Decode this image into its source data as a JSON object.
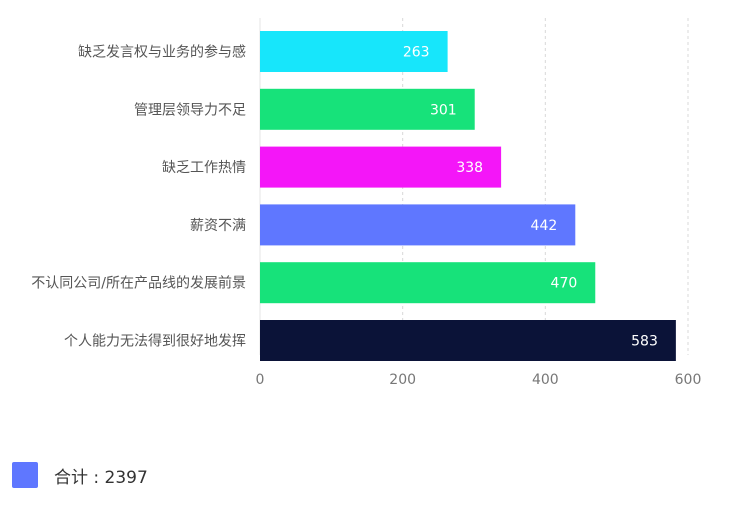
{
  "chart_data": {
    "type": "bar",
    "orientation": "horizontal",
    "categories": [
      "缺乏发言权与业务的参与感",
      "管理层领导力不足",
      "缺乏工作热情",
      "薪资不满",
      "不认同公司/所在产品线的发展前景",
      "个人能力无法得到很好地发挥"
    ],
    "values": [
      263,
      301,
      338,
      442,
      470,
      583
    ],
    "colors": [
      "#17E6FB",
      "#17E27A",
      "#F416F8",
      "#5F77FF",
      "#17E27A",
      "#0B1338"
    ],
    "xlim": [
      0,
      600
    ],
    "xticks": [
      0,
      200,
      400,
      600
    ],
    "grid": true,
    "legend": {
      "placement": "bottom-left",
      "color": "#5F77FF",
      "label": "合计 : 2397"
    }
  }
}
